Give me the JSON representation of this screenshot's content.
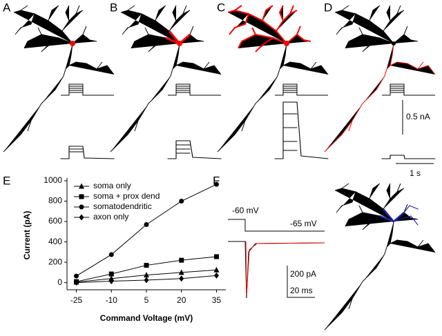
{
  "panel_labels": [
    "A",
    "B",
    "C",
    "D",
    "E",
    "F"
  ],
  "scale_bars_top": {
    "current": "0.5 nA",
    "time": "1 s"
  },
  "panel_f": {
    "holding": "-60 mV",
    "step": "-65 mV",
    "current": "200 pA",
    "time": "20 ms"
  },
  "chart_data": {
    "type": "line",
    "x_label": "Command Voltage (mV)",
    "y_label": "Current (pA)",
    "x": [
      -25,
      -10,
      5,
      20,
      35
    ],
    "xlim": [
      -29,
      39
    ],
    "xticks": [
      -25,
      -10,
      5,
      20,
      35
    ],
    "ylim": [
      -70,
      1000
    ],
    "yticks": [
      0,
      200,
      400,
      600,
      800,
      1000
    ],
    "legend": "top-left",
    "series": [
      {
        "name": "soma only",
        "color": "#000000",
        "marker": "triangle",
        "values": [
          5,
          40,
          75,
          100,
          125
        ]
      },
      {
        "name": "soma + prox dend",
        "color": "#000000",
        "marker": "square",
        "values": [
          10,
          85,
          170,
          220,
          255
        ]
      },
      {
        "name": "somatodendritic",
        "color": "#000000",
        "marker": "circle",
        "values": [
          65,
          275,
          570,
          800,
          965
        ]
      },
      {
        "name": "axon only",
        "color": "#000000",
        "marker": "diamond",
        "values": [
          0,
          15,
          25,
          40,
          70
        ]
      }
    ]
  }
}
